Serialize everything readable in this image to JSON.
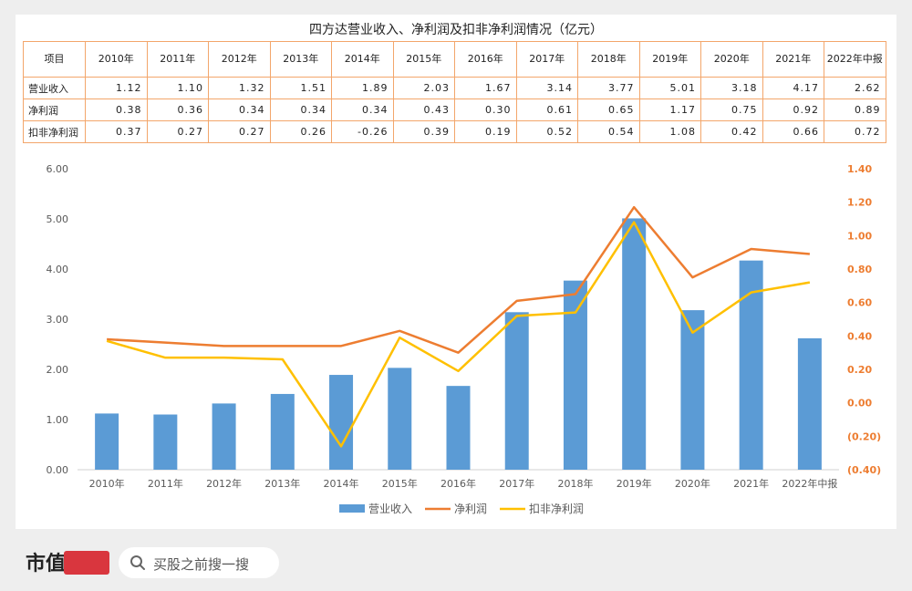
{
  "table": {
    "title": "四方达营业收入、净利润及扣非净利润情况（亿元）",
    "header_label": "项目",
    "years": [
      "2010年",
      "2011年",
      "2012年",
      "2013年",
      "2014年",
      "2015年",
      "2016年",
      "2017年",
      "2018年",
      "2019年",
      "2020年",
      "2021年",
      "2022年中报"
    ],
    "rows": [
      {
        "label": "营业收入",
        "values": [
          "1.12",
          "1.10",
          "1.32",
          "1.51",
          "1.89",
          "2.03",
          "1.67",
          "3.14",
          "3.77",
          "5.01",
          "3.18",
          "4.17",
          "2.62"
        ]
      },
      {
        "label": "净利润",
        "values": [
          "0.38",
          "0.36",
          "0.34",
          "0.34",
          "0.34",
          "0.43",
          "0.30",
          "0.61",
          "0.65",
          "1.17",
          "0.75",
          "0.92",
          "0.89"
        ]
      },
      {
        "label": "扣非净利润",
        "values": [
          "0.37",
          "0.27",
          "0.27",
          "0.26",
          "-0.26",
          "0.39",
          "0.19",
          "0.52",
          "0.54",
          "1.08",
          "0.42",
          "0.66",
          "0.72"
        ]
      }
    ]
  },
  "chart_data": {
    "type": "bar",
    "categories": [
      "2010年",
      "2011年",
      "2012年",
      "2013年",
      "2014年",
      "2015年",
      "2016年",
      "2017年",
      "2018年",
      "2019年",
      "2020年",
      "2021年",
      "2022年中报"
    ],
    "series": [
      {
        "name": "营业收入",
        "kind": "bar",
        "axis": "left",
        "color": "#5b9bd5",
        "values": [
          1.12,
          1.1,
          1.32,
          1.51,
          1.89,
          2.03,
          1.67,
          3.14,
          3.77,
          5.01,
          3.18,
          4.17,
          2.62
        ]
      },
      {
        "name": "净利润",
        "kind": "line",
        "axis": "right",
        "color": "#ed7d31",
        "values": [
          0.38,
          0.36,
          0.34,
          0.34,
          0.34,
          0.43,
          0.3,
          0.61,
          0.65,
          1.17,
          0.75,
          0.92,
          0.89
        ]
      },
      {
        "name": "扣非净利润",
        "kind": "line",
        "axis": "right",
        "color": "#ffc000",
        "values": [
          0.37,
          0.27,
          0.27,
          0.26,
          -0.26,
          0.39,
          0.19,
          0.52,
          0.54,
          1.08,
          0.42,
          0.66,
          0.72
        ]
      }
    ],
    "left_axis": {
      "range": [
        0,
        6
      ],
      "ticks": [
        "0.00",
        "1.00",
        "2.00",
        "3.00",
        "4.00",
        "5.00",
        "6.00"
      ]
    },
    "right_axis": {
      "range": [
        -0.4,
        1.4
      ],
      "ticks": [
        "(0.40)",
        "(0.20)",
        "0.00",
        "0.20",
        "0.40",
        "0.60",
        "0.80",
        "1.00",
        "1.20",
        "1.40"
      ],
      "color": "#ed7d31"
    },
    "grid": false,
    "legend_position": "bottom"
  },
  "footer": {
    "logo_text": "市值",
    "search_placeholder": "买股之前搜一搜"
  }
}
